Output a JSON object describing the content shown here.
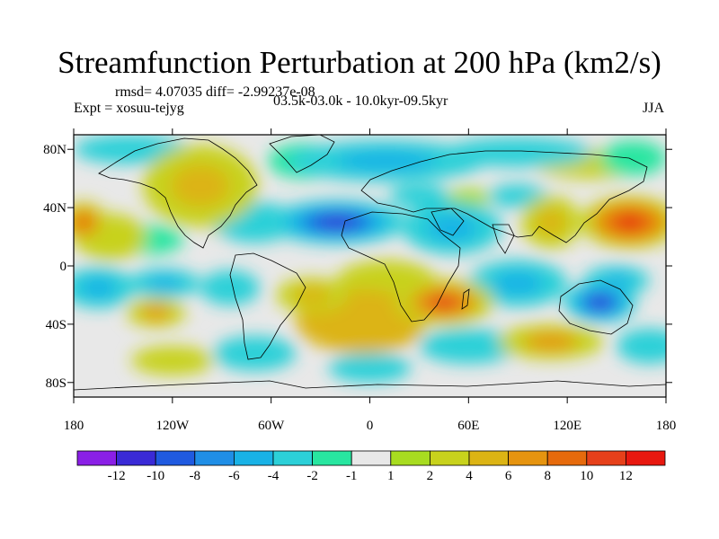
{
  "title": "Streamfunction Perturbation at 200 hPa (km2/s)",
  "stats": "rmsd= 4.07035 diff= -2.99237e-08",
  "experiment": "Expt = xosuu-tejyg",
  "period": "03.5k-03.0k - 10.0kyr-09.5kyr",
  "season": "JJA",
  "colors": {
    "land_outline": "#000000",
    "neutral": "#e8e8e8",
    "levels": [
      "#8a1fe6",
      "#3a2ad6",
      "#1f5ae0",
      "#1f8ee6",
      "#19b2e6",
      "#2cd0d8",
      "#28e6a0",
      "#e8e8e8",
      "#a8dc20",
      "#c8d21c",
      "#dcb414",
      "#e6940f",
      "#e66a0c",
      "#e6401a",
      "#e8180f"
    ]
  },
  "chart_data": {
    "type": "heatmap",
    "map": "global filled contour map (longitude-latitude)",
    "variable": "200 hPa streamfunction perturbation",
    "units": "km2/s",
    "xlim": [
      -180,
      180
    ],
    "ylim": [
      -90,
      90
    ],
    "x_ticks": [
      {
        "value": -180,
        "label": "180"
      },
      {
        "value": -120,
        "label": "120W"
      },
      {
        "value": -60,
        "label": "60W"
      },
      {
        "value": 0,
        "label": "0"
      },
      {
        "value": 60,
        "label": "60E"
      },
      {
        "value": 120,
        "label": "120E"
      },
      {
        "value": 180,
        "label": "180"
      }
    ],
    "y_ticks": [
      {
        "value": 80,
        "label": "80N"
      },
      {
        "value": 40,
        "label": "40N"
      },
      {
        "value": 0,
        "label": "0"
      },
      {
        "value": -40,
        "label": "40S"
      },
      {
        "value": -80,
        "label": "80S"
      }
    ],
    "colorbar_labels": [
      "-12",
      "-10",
      "-8",
      "-6",
      "-4",
      "-2",
      "-1",
      "1",
      "2",
      "4",
      "6",
      "8",
      "10",
      "12"
    ],
    "features": [
      {
        "lon": -174,
        "lat": 30,
        "value": 9,
        "rx": 14,
        "ry": 14
      },
      {
        "lon": -158,
        "lat": 20,
        "value": 3,
        "rx": 22,
        "ry": 16
      },
      {
        "lon": -145,
        "lat": 80,
        "value": -3,
        "rx": 35,
        "ry": 10
      },
      {
        "lon": -103,
        "lat": 55,
        "value": 5,
        "rx": 35,
        "ry": 28
      },
      {
        "lon": -85,
        "lat": 28,
        "value": 2,
        "rx": 12,
        "ry": 8
      },
      {
        "lon": -40,
        "lat": 72,
        "value": -2,
        "rx": 22,
        "ry": 12
      },
      {
        "lon": -15,
        "lat": 68,
        "value": 2,
        "rx": 12,
        "ry": 8
      },
      {
        "lon": 10,
        "lat": 72,
        "value": -5,
        "rx": 60,
        "ry": 14
      },
      {
        "lon": 90,
        "lat": 78,
        "value": -3,
        "rx": 45,
        "ry": 10
      },
      {
        "lon": 135,
        "lat": 70,
        "value": 2,
        "rx": 35,
        "ry": 10
      },
      {
        "lon": 160,
        "lat": 74,
        "value": -2,
        "rx": 20,
        "ry": 12
      },
      {
        "lon": -20,
        "lat": 30,
        "value": -12,
        "rx": 42,
        "ry": 15
      },
      {
        "lon": 50,
        "lat": 26,
        "value": -5,
        "rx": 30,
        "ry": 18
      },
      {
        "lon": -70,
        "lat": 30,
        "value": -4,
        "rx": 25,
        "ry": 14
      },
      {
        "lon": -135,
        "lat": 18,
        "value": -2,
        "rx": 22,
        "ry": 10
      },
      {
        "lon": 110,
        "lat": 30,
        "value": 5,
        "rx": 18,
        "ry": 18
      },
      {
        "lon": 158,
        "lat": 30,
        "value": 12,
        "rx": 30,
        "ry": 18
      },
      {
        "lon": 60,
        "lat": 47,
        "value": 1,
        "rx": 14,
        "ry": 6
      },
      {
        "lon": 30,
        "lat": 48,
        "value": -3,
        "rx": 18,
        "ry": 8
      },
      {
        "lon": 90,
        "lat": 48,
        "value": -3,
        "rx": 18,
        "ry": 8
      },
      {
        "lon": -165,
        "lat": -15,
        "value": -6,
        "rx": 22,
        "ry": 14
      },
      {
        "lon": -125,
        "lat": -12,
        "value": -6,
        "rx": 22,
        "ry": 10
      },
      {
        "lon": -85,
        "lat": -15,
        "value": -3,
        "rx": 18,
        "ry": 12
      },
      {
        "lon": -130,
        "lat": -32,
        "value": 6,
        "rx": 18,
        "ry": 10
      },
      {
        "lon": -120,
        "lat": -65,
        "value": 2,
        "rx": 25,
        "ry": 10
      },
      {
        "lon": -70,
        "lat": -60,
        "value": -3,
        "rx": 25,
        "ry": 12
      },
      {
        "lon": -35,
        "lat": -20,
        "value": 5,
        "rx": 22,
        "ry": 12
      },
      {
        "lon": -5,
        "lat": -38,
        "value": 4,
        "rx": 40,
        "ry": 22
      },
      {
        "lon": 45,
        "lat": -25,
        "value": 10,
        "rx": 30,
        "ry": 16
      },
      {
        "lon": 10,
        "lat": -10,
        "value": 3,
        "rx": 30,
        "ry": 14
      },
      {
        "lon": 90,
        "lat": -12,
        "value": -5,
        "rx": 30,
        "ry": 16
      },
      {
        "lon": 140,
        "lat": -25,
        "value": -12,
        "rx": 22,
        "ry": 14
      },
      {
        "lon": 150,
        "lat": -10,
        "value": -6,
        "rx": 20,
        "ry": 10
      },
      {
        "lon": 110,
        "lat": -52,
        "value": 6,
        "rx": 32,
        "ry": 12
      },
      {
        "lon": 60,
        "lat": -55,
        "value": -3,
        "rx": 30,
        "ry": 12
      },
      {
        "lon": 170,
        "lat": -55,
        "value": -3,
        "rx": 20,
        "ry": 12
      },
      {
        "lon": 0,
        "lat": -70,
        "value": -3,
        "rx": 25,
        "ry": 10
      }
    ]
  }
}
